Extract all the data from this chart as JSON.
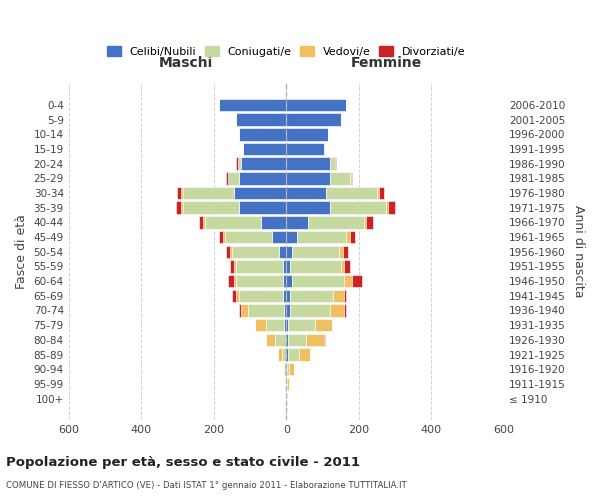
{
  "age_groups": [
    "100+",
    "95-99",
    "90-94",
    "85-89",
    "80-84",
    "75-79",
    "70-74",
    "65-69",
    "60-64",
    "55-59",
    "50-54",
    "45-49",
    "40-44",
    "35-39",
    "30-34",
    "25-29",
    "20-24",
    "15-19",
    "10-14",
    "5-9",
    "0-4"
  ],
  "birth_years": [
    "≤ 1910",
    "1911-1915",
    "1916-1920",
    "1921-1925",
    "1926-1930",
    "1931-1935",
    "1936-1940",
    "1941-1945",
    "1946-1950",
    "1951-1955",
    "1956-1960",
    "1961-1965",
    "1966-1970",
    "1971-1975",
    "1976-1980",
    "1981-1985",
    "1986-1990",
    "1991-1995",
    "1996-2000",
    "2001-2005",
    "2006-2010"
  ],
  "maschi": {
    "celibi": [
      0,
      0,
      0,
      2,
      2,
      5,
      5,
      10,
      10,
      10,
      20,
      40,
      70,
      130,
      145,
      130,
      125,
      120,
      130,
      140,
      185
    ],
    "coniugati": [
      0,
      2,
      5,
      10,
      30,
      50,
      100,
      120,
      130,
      130,
      130,
      130,
      155,
      155,
      140,
      30,
      8,
      0,
      0,
      0,
      0
    ],
    "vedovi": [
      0,
      2,
      5,
      10,
      25,
      30,
      20,
      10,
      5,
      5,
      5,
      5,
      5,
      5,
      5,
      0,
      0,
      0,
      0,
      0,
      0
    ],
    "divorziati": [
      0,
      0,
      0,
      0,
      0,
      0,
      5,
      10,
      15,
      10,
      10,
      10,
      10,
      15,
      10,
      5,
      5,
      0,
      0,
      0,
      0
    ]
  },
  "femmine": {
    "nubili": [
      0,
      0,
      2,
      5,
      5,
      5,
      10,
      10,
      15,
      10,
      15,
      30,
      60,
      120,
      110,
      120,
      120,
      105,
      115,
      150,
      165
    ],
    "coniugate": [
      0,
      2,
      5,
      30,
      50,
      75,
      110,
      120,
      145,
      140,
      130,
      135,
      155,
      155,
      140,
      55,
      15,
      2,
      0,
      0,
      0
    ],
    "vedove": [
      2,
      5,
      15,
      30,
      50,
      45,
      40,
      30,
      20,
      10,
      10,
      10,
      5,
      5,
      5,
      2,
      0,
      0,
      0,
      0,
      0
    ],
    "divorziate": [
      0,
      0,
      0,
      0,
      2,
      2,
      5,
      5,
      30,
      15,
      15,
      15,
      20,
      20,
      15,
      5,
      2,
      0,
      0,
      0,
      0
    ]
  },
  "colors": {
    "celibi": "#4472C4",
    "coniugati": "#C5D9A0",
    "vedovi": "#F0C060",
    "divorziati": "#CC2222"
  },
  "xlim": [
    -600,
    600
  ],
  "xticks": [
    -600,
    -400,
    -200,
    0,
    200,
    400,
    600
  ],
  "xticklabels": [
    "600",
    "400",
    "200",
    "0",
    "200",
    "400",
    "600"
  ],
  "title": "Popolazione per età, sesso e stato civile - 2011",
  "subtitle": "COMUNE DI FIESSO D'ARTICO (VE) - Dati ISTAT 1° gennaio 2011 - Elaborazione TUTTITALIA.IT",
  "ylabel_left": "Fasce di età",
  "ylabel_right": "Anni di nascita",
  "maschi_label": "Maschi",
  "femmine_label": "Femmine",
  "legend_labels": [
    "Celibi/Nubili",
    "Coniugati/e",
    "Vedovi/e",
    "Divorziati/e"
  ],
  "background_color": "#FFFFFF",
  "grid_color": "#CCCCCC"
}
